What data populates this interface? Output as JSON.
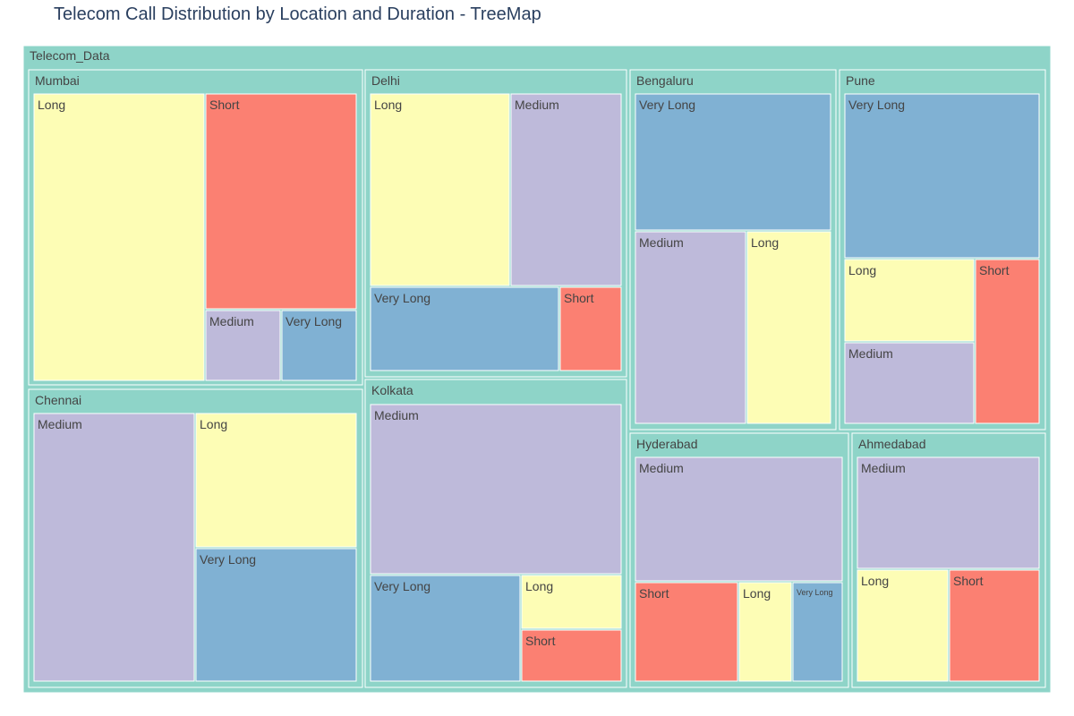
{
  "chart_data": {
    "type": "treemap",
    "title": "Telecom Call Distribution by Location and Duration - TreeMap",
    "root": "Telecom_Data",
    "colors": {
      "root": "#8ed4c8",
      "location": "#8ed4c8",
      "Long": "#fdfdb5",
      "Short": "#fb8072",
      "Medium": "#bebada",
      "Very Long": "#80b1d3"
    },
    "locations": [
      {
        "name": "Mumbai",
        "children": [
          {
            "label": "Long",
            "value": 2005
          },
          {
            "label": "Short",
            "value": 1318
          },
          {
            "label": "Medium",
            "value": 472
          },
          {
            "label": "Very Long",
            "value": 472
          }
        ]
      },
      {
        "name": "Chennai",
        "children": [
          {
            "label": "Medium",
            "value": 1778
          },
          {
            "label": "Long",
            "value": 1024
          },
          {
            "label": "Very Long",
            "value": 765
          }
        ]
      },
      {
        "name": "Delhi",
        "children": [
          {
            "label": "Long",
            "value": 1087
          },
          {
            "label": "Medium",
            "value": 864
          },
          {
            "label": "Very Long",
            "value": 613
          },
          {
            "label": "Short",
            "value": 200
          }
        ]
      },
      {
        "name": "Kolkata",
        "children": [
          {
            "label": "Medium",
            "value": 1712
          },
          {
            "label": "Very Long",
            "value": 613
          },
          {
            "label": "Long",
            "value": 203
          },
          {
            "label": "Short",
            "value": 203
          }
        ]
      },
      {
        "name": "Bengaluru",
        "children": [
          {
            "label": "Very Long",
            "value": 1110
          },
          {
            "label": "Medium",
            "value": 901
          },
          {
            "label": "Long",
            "value": 688
          }
        ]
      },
      {
        "name": "Pune",
        "children": [
          {
            "label": "Very Long",
            "value": 1252
          },
          {
            "label": "Long",
            "value": 425
          },
          {
            "label": "Medium",
            "value": 425
          },
          {
            "label": "Short",
            "value": 443
          }
        ]
      },
      {
        "name": "Hyderabad",
        "children": [
          {
            "label": "Medium",
            "value": 1065
          },
          {
            "label": "Short",
            "value": 514
          },
          {
            "label": "Long",
            "value": 257
          },
          {
            "label": "Very Long",
            "value": 257
          }
        ]
      },
      {
        "name": "Ahmedabad",
        "children": [
          {
            "label": "Medium",
            "value": 906
          },
          {
            "label": "Long",
            "value": 454
          },
          {
            "label": "Short",
            "value": 454
          }
        ]
      }
    ]
  }
}
